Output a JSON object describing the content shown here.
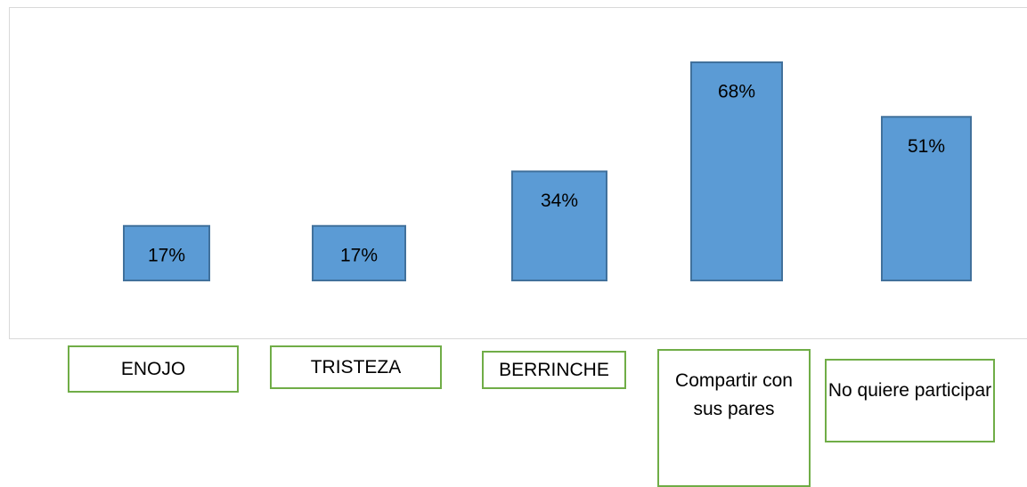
{
  "chart_data": {
    "type": "bar",
    "categories": [
      "ENOJO",
      "TRISTEZA",
      "BERRINCHE",
      "Compartir con sus pares",
      "No quiere participar"
    ],
    "values": [
      17,
      17,
      34,
      68,
      51
    ],
    "value_labels": [
      "17%",
      "17%",
      "34%",
      "68%",
      "51%"
    ],
    "color": "#5b9bd5"
  }
}
